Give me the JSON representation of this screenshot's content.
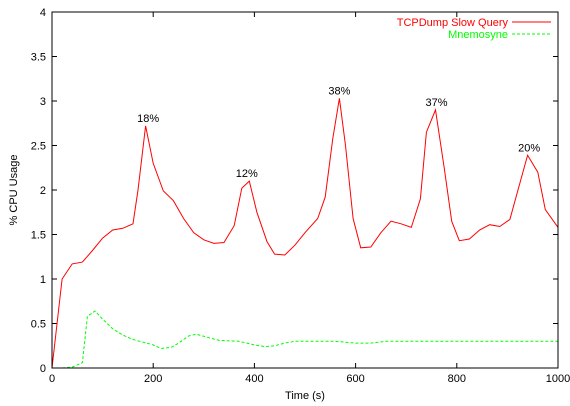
{
  "chart_data": {
    "type": "line",
    "title": "",
    "xlabel": "Time (s)",
    "ylabel": "% CPU Usage",
    "xlim": [
      0,
      1000
    ],
    "ylim": [
      0,
      4
    ],
    "xticks": [
      0,
      200,
      400,
      600,
      800,
      1000
    ],
    "yticks": [
      0,
      0.5,
      1,
      1.5,
      2,
      2.5,
      3,
      3.5,
      4
    ],
    "grid": false,
    "legend_position": "top-right",
    "series": [
      {
        "name": "TCPDump Slow Query",
        "color": "#ff0000",
        "dash": "solid",
        "points": [
          [
            0,
            0
          ],
          [
            20,
            1.0
          ],
          [
            40,
            1.17
          ],
          [
            60,
            1.19
          ],
          [
            80,
            1.32
          ],
          [
            100,
            1.46
          ],
          [
            120,
            1.55
          ],
          [
            140,
            1.57
          ],
          [
            160,
            1.62
          ],
          [
            170,
            2.0
          ],
          [
            185,
            2.72
          ],
          [
            200,
            2.3
          ],
          [
            220,
            1.99
          ],
          [
            240,
            1.88
          ],
          [
            260,
            1.68
          ],
          [
            280,
            1.52
          ],
          [
            300,
            1.44
          ],
          [
            320,
            1.4
          ],
          [
            340,
            1.41
          ],
          [
            360,
            1.6
          ],
          [
            375,
            2.02
          ],
          [
            390,
            2.1
          ],
          [
            405,
            1.75
          ],
          [
            425,
            1.42
          ],
          [
            440,
            1.28
          ],
          [
            460,
            1.27
          ],
          [
            480,
            1.38
          ],
          [
            500,
            1.52
          ],
          [
            525,
            1.68
          ],
          [
            540,
            1.92
          ],
          [
            555,
            2.58
          ],
          [
            568,
            3.03
          ],
          [
            580,
            2.5
          ],
          [
            595,
            1.68
          ],
          [
            610,
            1.35
          ],
          [
            630,
            1.36
          ],
          [
            650,
            1.52
          ],
          [
            670,
            1.65
          ],
          [
            690,
            1.62
          ],
          [
            710,
            1.58
          ],
          [
            728,
            1.9
          ],
          [
            740,
            2.65
          ],
          [
            758,
            2.9
          ],
          [
            775,
            2.25
          ],
          [
            790,
            1.65
          ],
          [
            805,
            1.43
          ],
          [
            825,
            1.45
          ],
          [
            845,
            1.55
          ],
          [
            865,
            1.61
          ],
          [
            885,
            1.59
          ],
          [
            905,
            1.67
          ],
          [
            920,
            1.98
          ],
          [
            940,
            2.39
          ],
          [
            960,
            2.2
          ],
          [
            975,
            1.78
          ],
          [
            1000,
            1.58
          ]
        ]
      },
      {
        "name": "Mnemosyne",
        "color": "#00ff00",
        "dash": "dashed",
        "points": [
          [
            0,
            0
          ],
          [
            20,
            0
          ],
          [
            40,
            0.01
          ],
          [
            60,
            0.06
          ],
          [
            70,
            0.58
          ],
          [
            85,
            0.64
          ],
          [
            100,
            0.55
          ],
          [
            120,
            0.44
          ],
          [
            140,
            0.37
          ],
          [
            160,
            0.32
          ],
          [
            180,
            0.29
          ],
          [
            200,
            0.26
          ],
          [
            215,
            0.22
          ],
          [
            235,
            0.23
          ],
          [
            250,
            0.28
          ],
          [
            270,
            0.36
          ],
          [
            285,
            0.38
          ],
          [
            310,
            0.34
          ],
          [
            330,
            0.31
          ],
          [
            370,
            0.3
          ],
          [
            400,
            0.26
          ],
          [
            420,
            0.24
          ],
          [
            440,
            0.25
          ],
          [
            460,
            0.28
          ],
          [
            480,
            0.3
          ],
          [
            560,
            0.3
          ],
          [
            600,
            0.28
          ],
          [
            630,
            0.28
          ],
          [
            660,
            0.3
          ],
          [
            700,
            0.3
          ],
          [
            800,
            0.3
          ],
          [
            900,
            0.3
          ],
          [
            1000,
            0.3
          ]
        ]
      }
    ],
    "annotations": [
      {
        "text": "18%",
        "x": 190,
        "y": 2.72
      },
      {
        "text": "12%",
        "x": 385,
        "y": 2.1
      },
      {
        "text": "38%",
        "x": 568,
        "y": 3.03
      },
      {
        "text": "37%",
        "x": 760,
        "y": 2.9
      },
      {
        "text": "20%",
        "x": 943,
        "y": 2.39
      }
    ]
  }
}
